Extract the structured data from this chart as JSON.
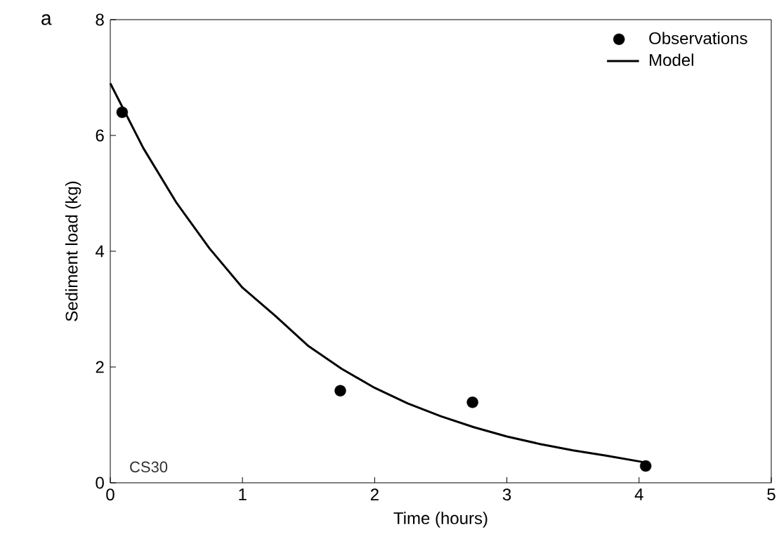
{
  "chart_data": {
    "type": "scatter",
    "xlabel": "Time (hours)",
    "ylabel": "Sediment load (kg)",
    "annotations": [
      "a",
      "CS30"
    ],
    "xlim": [
      0,
      5
    ],
    "xticks": [
      0,
      1,
      2,
      3,
      4,
      5
    ],
    "ylim": [
      0,
      8
    ],
    "yticks": [
      0,
      2,
      4,
      6,
      8
    ],
    "grid": false,
    "legend": "top right",
    "series": [
      {
        "name": "Observations",
        "type": "scatter",
        "marker": "circle",
        "color": "#000000",
        "x": [
          0.09,
          1.74,
          2.74,
          4.05
        ],
        "values": [
          6.4,
          1.59,
          1.39,
          0.29
        ]
      },
      {
        "name": "Model",
        "type": "line",
        "marker": "none",
        "line_style": "solid",
        "color": "#000000",
        "x": [
          0,
          0.25,
          0.5,
          0.75,
          1,
          1.25,
          1.5,
          1.75,
          2,
          2.25,
          2.5,
          2.75,
          3,
          3.25,
          3.5,
          3.75,
          4.05
        ],
        "values": [
          6.9,
          5.78,
          4.84,
          4.05,
          3.37,
          2.88,
          2.36,
          1.97,
          1.64,
          1.37,
          1.15,
          0.96,
          0.8,
          0.67,
          0.56,
          0.47,
          0.35
        ]
      }
    ]
  }
}
